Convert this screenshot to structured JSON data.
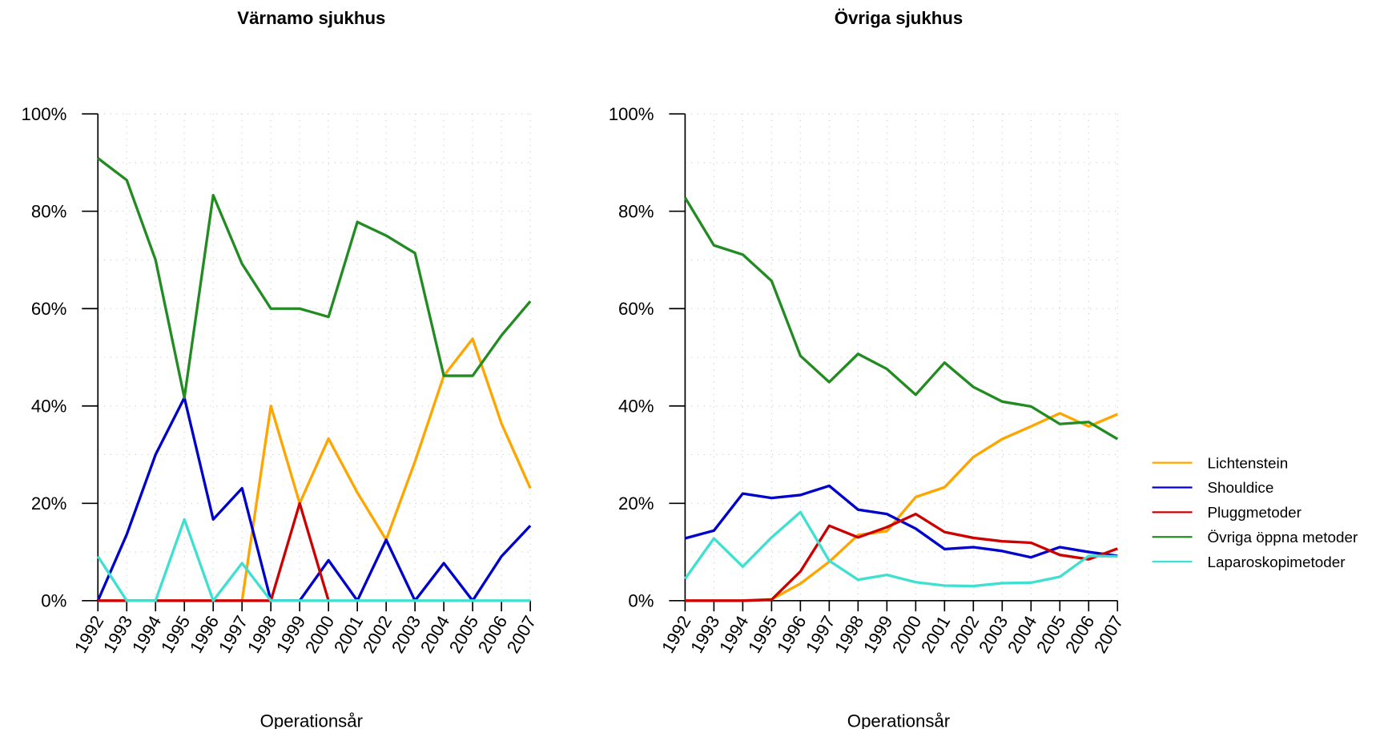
{
  "chart_data": [
    {
      "type": "line",
      "title": "Värnamo sjukhus",
      "x_label": "Operationsår",
      "categories": [
        "1992",
        "1993",
        "1994",
        "1995",
        "1996",
        "1997",
        "1998",
        "1999",
        "2000",
        "2001",
        "2002",
        "2003",
        "2004",
        "2005",
        "2006",
        "2007"
      ],
      "ylim": [
        0,
        100
      ],
      "yticks": [
        {
          "value": 0,
          "label": "0%"
        },
        {
          "value": 20,
          "label": "20%"
        },
        {
          "value": 40,
          "label": "40%"
        },
        {
          "value": 60,
          "label": "60%"
        },
        {
          "value": 80,
          "label": "80%"
        },
        {
          "value": 100,
          "label": "100%"
        }
      ],
      "ygrid": [
        10,
        20,
        30,
        40,
        50,
        60,
        70,
        80,
        90,
        100
      ],
      "grid": true,
      "series": [
        {
          "color": "#ffa500",
          "values": [
            0,
            0,
            0,
            0,
            0,
            0,
            40,
            20,
            33.3,
            22.2,
            12.5,
            28.6,
            46.2,
            53.8,
            36.4,
            23.1
          ]
        },
        {
          "color": "#0000cd",
          "values": [
            0,
            13.6,
            30,
            41.7,
            16.7,
            23.1,
            0,
            0,
            8.3,
            0,
            12.5,
            0,
            7.7,
            0,
            9.1,
            15.4
          ]
        },
        {
          "color": "#cd0000",
          "values": [
            0,
            0,
            0,
            0,
            0,
            0,
            0,
            20,
            0,
            null,
            null,
            null,
            null,
            null,
            null,
            null
          ]
        },
        {
          "color": "#228b22",
          "values": [
            90.9,
            86.4,
            70,
            41.7,
            83.3,
            69.2,
            60,
            60,
            58.3,
            77.8,
            75,
            71.4,
            46.2,
            46.2,
            54.5,
            61.5
          ]
        },
        {
          "color": "#40e0d0",
          "values": [
            9.1,
            0,
            0,
            16.7,
            0,
            7.7,
            0,
            0,
            0,
            0,
            0,
            0,
            0,
            0,
            0,
            0
          ]
        }
      ]
    },
    {
      "type": "line",
      "title": "Övriga sjukhus",
      "x_label": "Operationsår",
      "categories": [
        "1992",
        "1993",
        "1994",
        "1995",
        "1996",
        "1997",
        "1998",
        "1999",
        "2000",
        "2001",
        "2002",
        "2003",
        "2004",
        "2005",
        "2006",
        "2007"
      ],
      "ylim": [
        0,
        100
      ],
      "yticks": [
        {
          "value": 0,
          "label": "0%"
        },
        {
          "value": 20,
          "label": "20%"
        },
        {
          "value": 40,
          "label": "40%"
        },
        {
          "value": 60,
          "label": "60%"
        },
        {
          "value": 80,
          "label": "80%"
        },
        {
          "value": 100,
          "label": "100%"
        }
      ],
      "ygrid": [
        10,
        20,
        30,
        40,
        50,
        60,
        70,
        80,
        90,
        100
      ],
      "grid": true,
      "legend": "right",
      "series": [
        {
          "name": "Lichtenstein",
          "color": "#ffa500",
          "values": [
            0,
            0,
            0,
            0.3,
            3.5,
            8,
            13.5,
            14.3,
            21.3,
            23.3,
            29.5,
            33.2,
            35.8,
            38.5,
            35.8,
            38.3
          ]
        },
        {
          "name": "Shouldice",
          "color": "#0000cd",
          "values": [
            12.8,
            14.4,
            22,
            21.1,
            21.7,
            23.6,
            18.7,
            17.8,
            14.8,
            10.6,
            11,
            10.2,
            8.9,
            11,
            10,
            9.2
          ]
        },
        {
          "name": "Pluggmetoder",
          "color": "#cd0000",
          "values": [
            0,
            0,
            0,
            0.2,
            6,
            15.4,
            13,
            15.1,
            17.8,
            14.1,
            12.9,
            12.2,
            11.9,
            9.4,
            8.5,
            10.7
          ]
        },
        {
          "name": "Övriga öppna metoder",
          "color": "#228b22",
          "values": [
            82.8,
            73,
            71.1,
            65.7,
            50.3,
            44.9,
            50.7,
            47.6,
            42.3,
            48.9,
            43.9,
            40.9,
            39.9,
            36.3,
            36.7,
            33.2
          ]
        },
        {
          "name": "Laparoskopimetoder",
          "color": "#40e0d0",
          "values": [
            4.5,
            12.8,
            7,
            13,
            18.2,
            8.2,
            4.3,
            5.3,
            3.8,
            3.1,
            3,
            3.6,
            3.7,
            4.9,
            9.2,
            9.1
          ]
        }
      ]
    }
  ]
}
